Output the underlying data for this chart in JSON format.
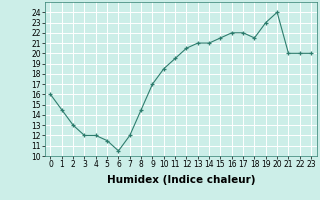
{
  "x": [
    0,
    1,
    2,
    3,
    4,
    5,
    6,
    7,
    8,
    9,
    10,
    11,
    12,
    13,
    14,
    15,
    16,
    17,
    18,
    19,
    20,
    21,
    22,
    23
  ],
  "y": [
    16,
    14.5,
    13,
    12,
    12,
    11.5,
    10.5,
    12,
    14.5,
    17,
    18.5,
    19.5,
    20.5,
    21,
    21,
    21.5,
    22,
    22,
    21.5,
    23,
    24,
    20,
    20,
    20
  ],
  "xlabel": "Humidex (Indice chaleur)",
  "ylim": [
    10,
    25
  ],
  "xlim": [
    -0.5,
    23.5
  ],
  "yticks": [
    10,
    11,
    12,
    13,
    14,
    15,
    16,
    17,
    18,
    19,
    20,
    21,
    22,
    23,
    24
  ],
  "xticks": [
    0,
    1,
    2,
    3,
    4,
    5,
    6,
    7,
    8,
    9,
    10,
    11,
    12,
    13,
    14,
    15,
    16,
    17,
    18,
    19,
    20,
    21,
    22,
    23
  ],
  "line_color": "#2e7d6e",
  "marker": "+",
  "bg_color": "#cceee8",
  "grid_color": "#ffffff",
  "tick_fontsize": 5.5,
  "xlabel_fontsize": 7.5
}
